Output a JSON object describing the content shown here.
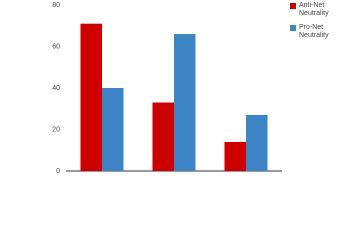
{
  "chart_data": {
    "type": "bar",
    "categories": [
      null,
      null,
      null
    ],
    "series": [
      {
        "name": "Anti-Net Neutrality",
        "color": "#cc0000",
        "values": [
          71,
          33,
          14
        ]
      },
      {
        "name": "Pro-Net Neutrality",
        "color": "#3d85c6",
        "values": [
          40,
          66,
          27
        ]
      }
    ],
    "ylim": [
      0,
      80
    ],
    "yticks": [
      0,
      20,
      40,
      60,
      80
    ],
    "grid": false,
    "legend": "right"
  }
}
